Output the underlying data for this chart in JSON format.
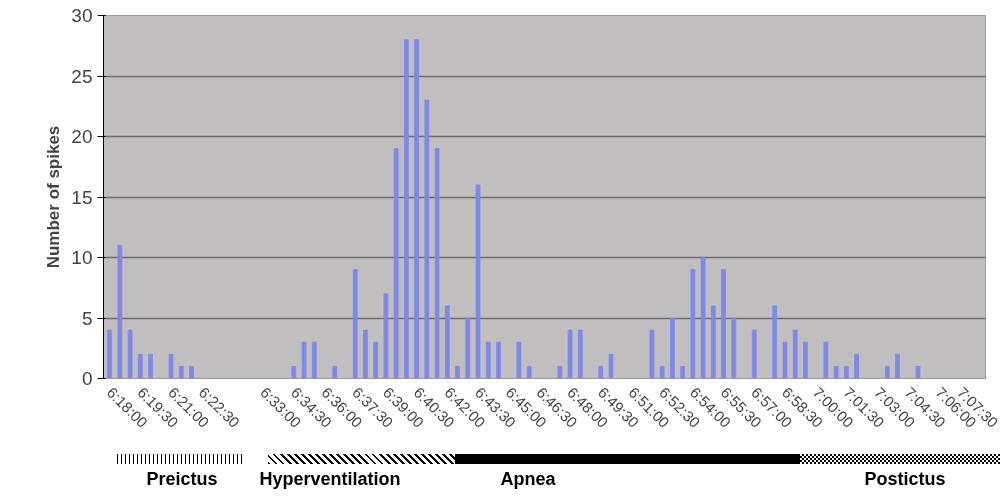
{
  "chart_data": {
    "type": "bar",
    "ylabel": "Number of spikes",
    "categories": [
      "6:18:00",
      null,
      null,
      "6:19:30",
      null,
      null,
      "6:21:00",
      null,
      null,
      "6:22:30",
      null,
      null,
      null,
      null,
      null,
      "6:33:00",
      null,
      null,
      "6:34:30",
      null,
      null,
      "6:36:00",
      null,
      null,
      "6:37:30",
      null,
      null,
      "6:39:00",
      null,
      null,
      "6:40:30",
      null,
      null,
      "6:42:00",
      null,
      null,
      "6:43:30",
      null,
      null,
      "6:45:00",
      null,
      null,
      "6:46:30",
      null,
      null,
      "6:48:00",
      null,
      null,
      "6:49:30",
      null,
      null,
      "6:51:00",
      null,
      null,
      "6:52:30",
      null,
      null,
      "6:54:00",
      null,
      null,
      "6:55:30",
      null,
      null,
      "6:57:00",
      null,
      null,
      "6:58:30",
      null,
      null,
      "7:00:00",
      null,
      null,
      "7:01:30",
      null,
      null,
      "7:03:00",
      null,
      null,
      "7:04:30",
      null,
      null,
      "7:06:00",
      null,
      null,
      "7:07:30"
    ],
    "series": [
      {
        "color": "#7d88e8",
        "values": [
          4,
          11,
          4,
          2,
          2,
          0,
          2,
          1,
          1,
          0,
          0,
          0,
          0,
          0,
          0,
          0,
          0,
          0,
          1,
          3,
          3,
          0,
          1,
          0,
          9,
          4,
          3,
          7,
          19,
          28,
          28,
          23,
          19,
          6,
          1,
          5,
          16,
          3,
          3,
          0,
          3,
          1,
          0,
          0,
          1,
          4,
          4,
          0,
          1,
          2,
          0,
          0,
          0,
          4,
          1,
          5,
          1,
          9,
          10,
          6,
          9,
          5,
          0,
          4,
          0,
          6,
          3,
          4,
          3,
          0,
          3,
          1,
          1,
          2,
          0,
          0,
          1,
          2,
          0,
          1,
          0,
          0,
          0,
          0,
          0
        ]
      }
    ],
    "ylim": [
      0,
      30
    ],
    "yticks": [
      0,
      5,
      10,
      15,
      20,
      25,
      30
    ],
    "grid": "y",
    "annotations": [
      "Preictus",
      "Hyperventilation",
      "Apnea",
      "Postictus"
    ]
  }
}
